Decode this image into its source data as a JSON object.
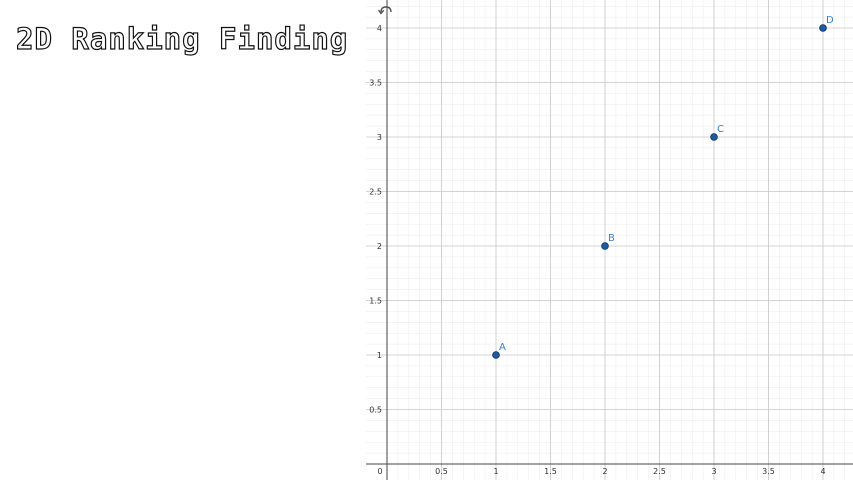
{
  "slide": {
    "title": "2D Ranking Finding"
  },
  "graph": {
    "undo_icon": "undo-arrow-icon",
    "point_color": "#1c5aa6",
    "label_color": "#3a7fd5",
    "axis_color": "#444444",
    "major_grid_color": "#c8c8c8",
    "minor_grid_color": "#ebebeb",
    "x_range": [
      0,
      4.2
    ],
    "y_range": [
      0,
      4.15
    ],
    "x_ticks": [
      "0",
      "0.5",
      "1",
      "1.5",
      "2",
      "2.5",
      "3",
      "3.5",
      "4"
    ],
    "y_ticks": [
      "0.5",
      "1",
      "1.5",
      "2",
      "2.5",
      "3",
      "3.5",
      "4"
    ],
    "points": [
      {
        "label": "A",
        "x": 1,
        "y": 1
      },
      {
        "label": "B",
        "x": 2,
        "y": 2
      },
      {
        "label": "C",
        "x": 3,
        "y": 3
      },
      {
        "label": "D",
        "x": 4,
        "y": 4
      }
    ]
  }
}
